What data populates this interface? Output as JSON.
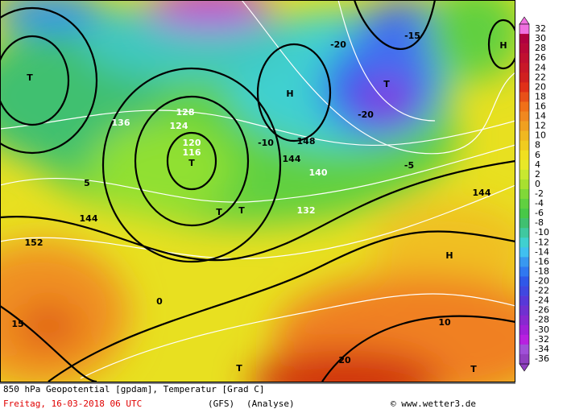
{
  "footer": {
    "title": "850 hPa Geopotential [gpdam], Temperatur [Grad C]",
    "date": "Freitag, 16-03-2018   06 UTC",
    "model": "(GFS)",
    "run": "(Analyse)",
    "credit": "© www.wetter3.de"
  },
  "color_scale": {
    "ticks": [
      32,
      30,
      28,
      26,
      24,
      22,
      20,
      18,
      16,
      14,
      12,
      10,
      8,
      6,
      4,
      2,
      0,
      -2,
      -4,
      -6,
      -8,
      -10,
      -12,
      -14,
      -16,
      -18,
      -20,
      -22,
      -24,
      -26,
      -28,
      -30,
      -32,
      -34,
      -36
    ],
    "colors": [
      "#f070e0",
      "#b00040",
      "#b80838",
      "#c01030",
      "#c81828",
      "#d02020",
      "#e03018",
      "#e85018",
      "#f07018",
      "#f08820",
      "#f0a020",
      "#f0b820",
      "#f0cc20",
      "#f0e020",
      "#e8e828",
      "#c8e830",
      "#a8e030",
      "#80d838",
      "#60d040",
      "#48c848",
      "#40c070",
      "#40c8a0",
      "#40d0d0",
      "#40c0f0",
      "#3898f0",
      "#3078f0",
      "#3058e8",
      "#4048e0",
      "#5838d8",
      "#7030d0",
      "#8828d0",
      "#a020d8",
      "#b820e0",
      "#a050d8",
      "#9040c0"
    ]
  },
  "map_labels": [
    "T",
    "T",
    "T",
    "T",
    "H",
    "H",
    "T",
    "H",
    "T",
    "T",
    "144",
    "144",
    "144",
    "136",
    "128",
    "120",
    "116",
    "124",
    "152",
    "148",
    "140",
    "132",
    "-20",
    "-20",
    "-15",
    "-10",
    "-5",
    "0",
    "5",
    "10",
    "15",
    "20"
  ]
}
